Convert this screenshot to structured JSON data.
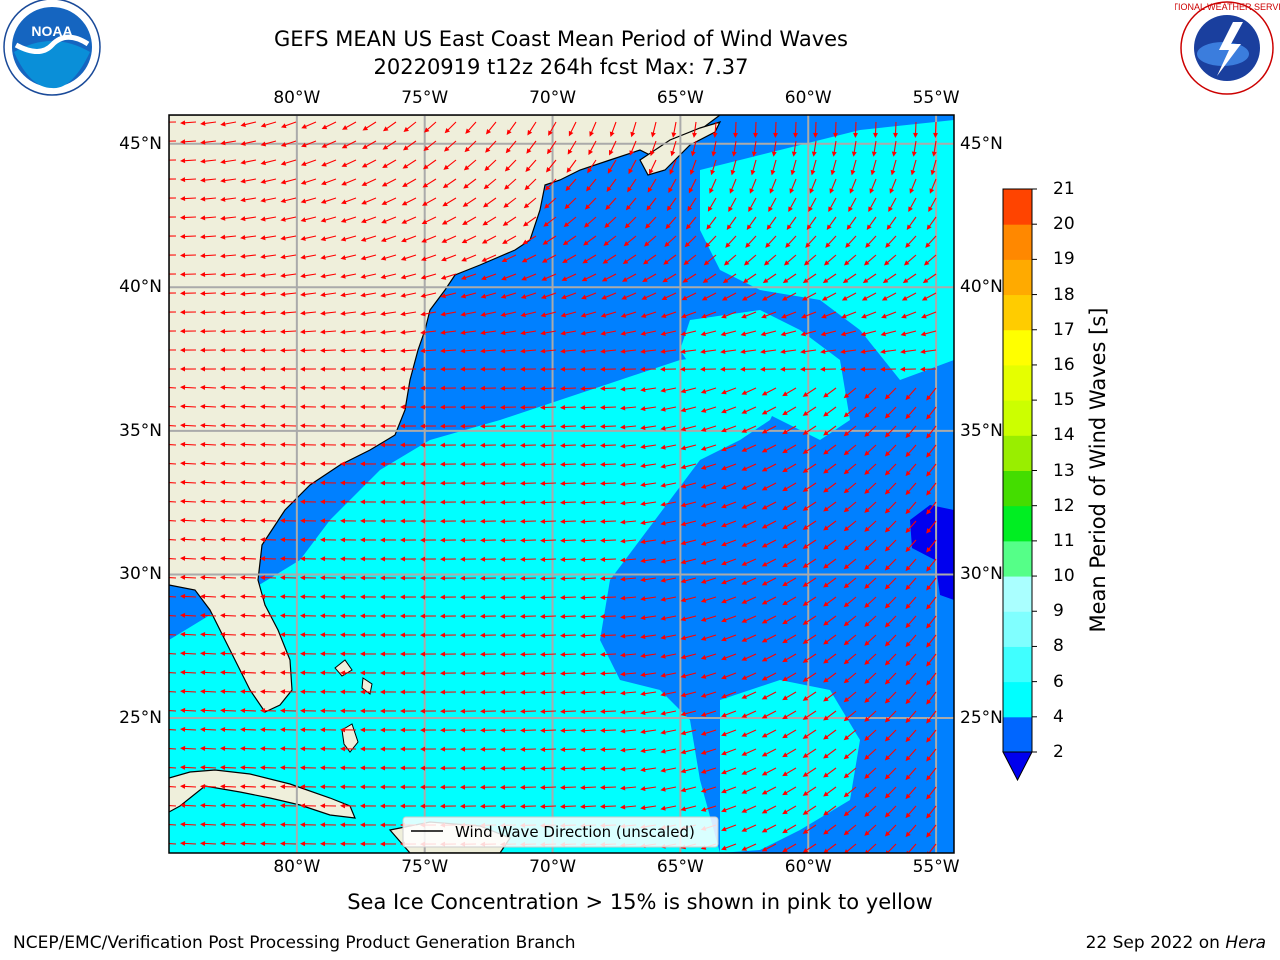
{
  "title": {
    "line1": "GEFS MEAN US East Coast Mean Period of Wind Waves",
    "line2": "20220919 t12z 264h fcst   Max: 7.37"
  },
  "map": {
    "lon_labels": [
      "80°W",
      "75°W",
      "70°W",
      "65°W",
      "60°W",
      "55°W"
    ],
    "lat_labels": [
      "45°N",
      "40°N",
      "35°N",
      "30°N",
      "25°N"
    ],
    "lon_range": [
      -85,
      -54.3
    ],
    "lat_range": [
      20.3,
      46
    ],
    "land_color": "#efefdb",
    "arrow_color": "#ff0000",
    "legend_label": "Wind Wave Direction (unscaled)"
  },
  "colorbar": {
    "label": "Mean Period of Wind Waves [s]",
    "ticks": [
      "2",
      "4",
      "6",
      "8",
      "9",
      "10",
      "11",
      "12",
      "13",
      "14",
      "15",
      "16",
      "17",
      "18",
      "19",
      "20",
      "21"
    ],
    "colors": [
      "#0066ff",
      "#00ffff",
      "#40ffff",
      "#80ffff",
      "#aaffff",
      "#55ff88",
      "#00ee22",
      "#44dd00",
      "#99ee00",
      "#ccff00",
      "#e5ff00",
      "#ffff00",
      "#ffcc00",
      "#ffaa00",
      "#ff8800",
      "#ff4400",
      "#ff2200",
      "#ff0000"
    ],
    "under_color": "#0000ee"
  },
  "note": "Sea Ice Concentration > 15% is shown in pink to yellow",
  "footer": {
    "left": "NCEP/EMC/Verification Post Processing Product Generation Branch",
    "date": "22 Sep 2022 on ",
    "machine": "Hera"
  },
  "logos": {
    "noaa_text": "NOAA",
    "nws_text": "NATIONAL WEATHER SERVICE"
  }
}
